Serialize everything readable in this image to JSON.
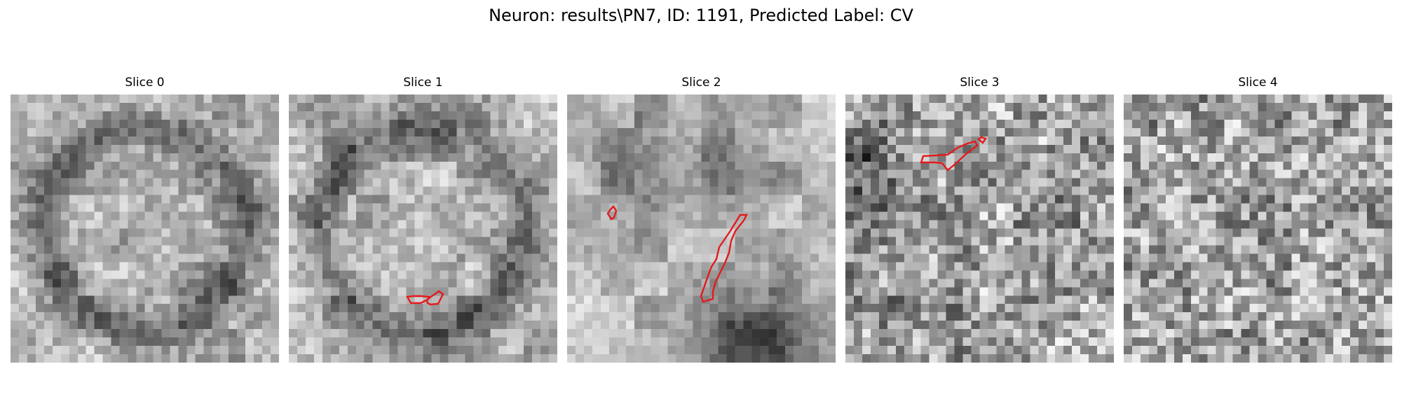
{
  "figure": {
    "title": "Neuron: results\\PN7, ID: 1191, Predicted Label: CV",
    "colormap": "gray",
    "contour_color": "#e41a1c"
  },
  "slices": [
    {
      "title": "Slice 0",
      "seed": 11,
      "pattern": "ring",
      "contour_count": 0
    },
    {
      "title": "Slice 1",
      "seed": 23,
      "pattern": "ring",
      "contour_count": 2
    },
    {
      "title": "Slice 2",
      "seed": 37,
      "pattern": "blob",
      "contour_count": 2
    },
    {
      "title": "Slice 3",
      "seed": 41,
      "pattern": "noise",
      "contour_count": 2
    },
    {
      "title": "Slice 4",
      "seed": 53,
      "pattern": "fine-noise",
      "contour_count": 0
    }
  ]
}
